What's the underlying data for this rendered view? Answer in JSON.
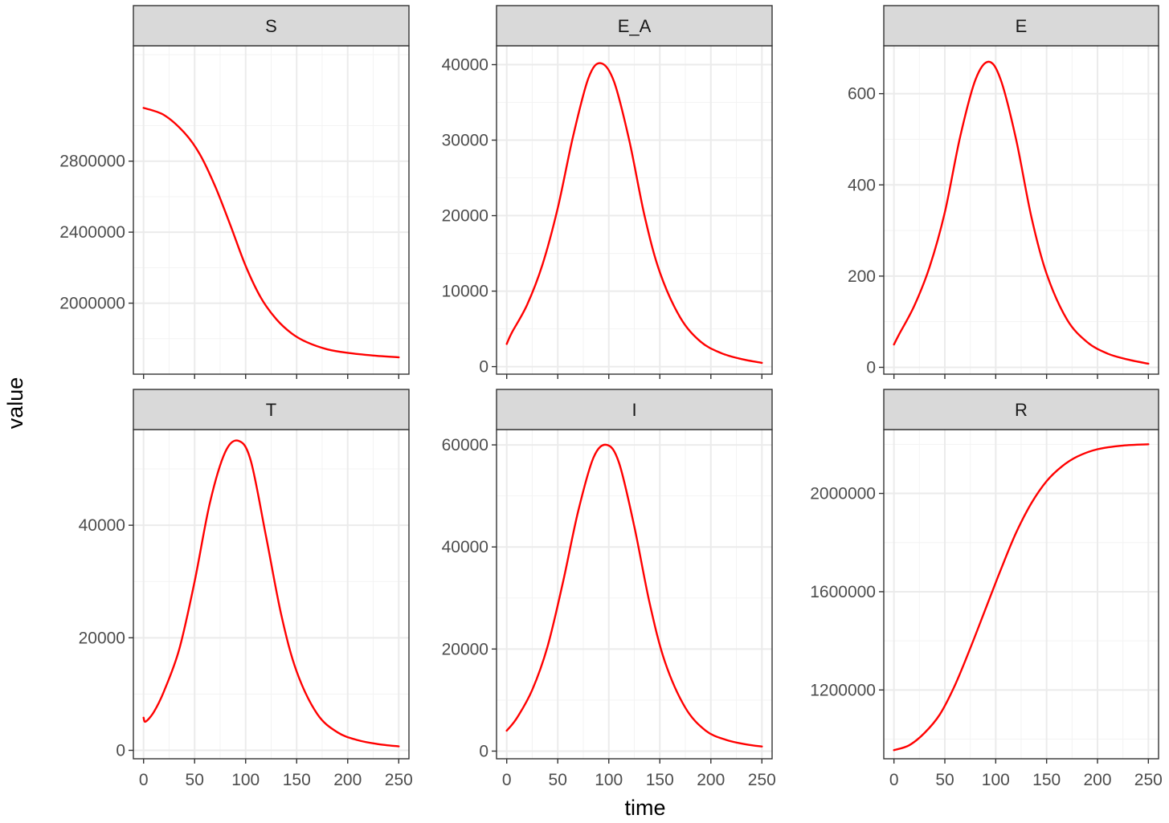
{
  "figure": {
    "xlabel": "time",
    "ylabel": "value"
  },
  "colors": {
    "line": "#ff0000",
    "strip_fill": "#d9d9d9",
    "border": "#333333",
    "grid_major": "#ebebeb",
    "grid_minor": "#f3f3f3",
    "tick_text": "#4d4d4d"
  },
  "chart_data": [
    {
      "type": "line",
      "title": "S",
      "xlabel": "time",
      "ylabel": "value",
      "xlim": [
        -10,
        260
      ],
      "ylim": [
        1600000,
        3450000
      ],
      "xticks": [
        0,
        50,
        100,
        150,
        200,
        250
      ],
      "xtick_labels": [
        "0",
        "50",
        "100",
        "150",
        "200",
        "250"
      ],
      "yticks": [
        2000000,
        2400000,
        2800000
      ],
      "ytick_labels": [
        "2000000",
        "2400000",
        "2800000"
      ],
      "series": [
        {
          "name": "S",
          "x": [
            0,
            20,
            40,
            55,
            70,
            85,
            100,
            115,
            130,
            145,
            160,
            180,
            200,
            225,
            250
          ],
          "y": [
            3100000,
            3060000,
            2960000,
            2840000,
            2660000,
            2440000,
            2210000,
            2030000,
            1910000,
            1830000,
            1780000,
            1740000,
            1720000,
            1705000,
            1695000
          ]
        }
      ]
    },
    {
      "type": "line",
      "title": "E_A",
      "xlabel": "time",
      "ylabel": "value",
      "xlim": [
        -10,
        260
      ],
      "ylim": [
        -1000,
        42500
      ],
      "xticks": [
        0,
        50,
        100,
        150,
        200,
        250
      ],
      "xtick_labels": [
        "0",
        "50",
        "100",
        "150",
        "200",
        "250"
      ],
      "yticks": [
        0,
        10000,
        20000,
        30000,
        40000
      ],
      "ytick_labels": [
        "0",
        "10000",
        "20000",
        "30000",
        "40000"
      ],
      "series": [
        {
          "name": "E_A",
          "x": [
            0,
            5,
            20,
            35,
            50,
            65,
            80,
            92,
            105,
            120,
            135,
            150,
            170,
            190,
            210,
            230,
            250
          ],
          "y": [
            3000,
            4500,
            8200,
            13500,
            21000,
            30500,
            38200,
            40200,
            37800,
            30000,
            20000,
            12500,
            6500,
            3300,
            1800,
            1000,
            500
          ]
        }
      ]
    },
    {
      "type": "line",
      "title": "E",
      "xlabel": "time",
      "ylabel": "value",
      "xlim": [
        -10,
        260
      ],
      "ylim": [
        -15,
        705
      ],
      "xticks": [
        0,
        50,
        100,
        150,
        200,
        250
      ],
      "xtick_labels": [
        "0",
        "50",
        "100",
        "150",
        "200",
        "250"
      ],
      "yticks": [
        0,
        200,
        400,
        600
      ],
      "ytick_labels": [
        "0",
        "200",
        "400",
        "600"
      ],
      "series": [
        {
          "name": "E",
          "x": [
            0,
            5,
            20,
            35,
            50,
            65,
            80,
            93,
            105,
            120,
            135,
            150,
            170,
            190,
            210,
            230,
            250
          ],
          "y": [
            50,
            72,
            135,
            220,
            340,
            505,
            630,
            670,
            630,
            500,
            330,
            205,
            105,
            55,
            30,
            17,
            8
          ]
        }
      ]
    },
    {
      "type": "line",
      "title": "T",
      "xlabel": "time",
      "ylabel": "value",
      "xlim": [
        -10,
        260
      ],
      "ylim": [
        -1500,
        57000
      ],
      "xticks": [
        0,
        50,
        100,
        150,
        200,
        250
      ],
      "xtick_labels": [
        "0",
        "50",
        "100",
        "150",
        "200",
        "250"
      ],
      "yticks": [
        0,
        20000,
        40000
      ],
      "ytick_labels": [
        "0",
        "20000",
        "40000"
      ],
      "series": [
        {
          "name": "T",
          "x": [
            0,
            2,
            10,
            20,
            35,
            50,
            65,
            80,
            93,
            105,
            120,
            135,
            150,
            170,
            190,
            210,
            230,
            250
          ],
          "y": [
            5800,
            5100,
            6800,
            10500,
            18000,
            30000,
            44000,
            53000,
            55000,
            51500,
            38000,
            24000,
            14000,
            6500,
            3200,
            1800,
            1100,
            700
          ]
        }
      ]
    },
    {
      "type": "line",
      "title": "I",
      "xlabel": "time",
      "ylabel": "value",
      "xlim": [
        -10,
        260
      ],
      "ylim": [
        -1500,
        63000
      ],
      "xticks": [
        0,
        50,
        100,
        150,
        200,
        250
      ],
      "xtick_labels": [
        "0",
        "50",
        "100",
        "150",
        "200",
        "250"
      ],
      "yticks": [
        0,
        20000,
        40000,
        60000
      ],
      "ytick_labels": [
        "0",
        "20000",
        "40000",
        "60000"
      ],
      "series": [
        {
          "name": "I",
          "x": [
            0,
            10,
            25,
            40,
            55,
            70,
            85,
            98,
            110,
            125,
            140,
            155,
            175,
            195,
            215,
            235,
            250
          ],
          "y": [
            4000,
            6500,
            12000,
            20500,
            33000,
            47000,
            57500,
            60000,
            56500,
            44000,
            29000,
            17500,
            8500,
            4000,
            2200,
            1300,
            900
          ]
        }
      ]
    },
    {
      "type": "line",
      "title": "R",
      "xlabel": "time",
      "ylabel": "value",
      "xlim": [
        -10,
        260
      ],
      "ylim": [
        920000,
        2260000
      ],
      "xticks": [
        0,
        50,
        100,
        150,
        200,
        250
      ],
      "xtick_labels": [
        "0",
        "50",
        "100",
        "150",
        "200",
        "250"
      ],
      "yticks": [
        1200000,
        1600000,
        2000000
      ],
      "ytick_labels": [
        "1200000",
        "1600000",
        "2000000"
      ],
      "series": [
        {
          "name": "R",
          "x": [
            0,
            15,
            30,
            45,
            60,
            75,
            90,
            105,
            120,
            135,
            150,
            165,
            180,
            200,
            225,
            250
          ],
          "y": [
            955000,
            975000,
            1025000,
            1100000,
            1220000,
            1370000,
            1530000,
            1690000,
            1840000,
            1960000,
            2050000,
            2110000,
            2150000,
            2180000,
            2195000,
            2200000
          ]
        }
      ]
    }
  ]
}
